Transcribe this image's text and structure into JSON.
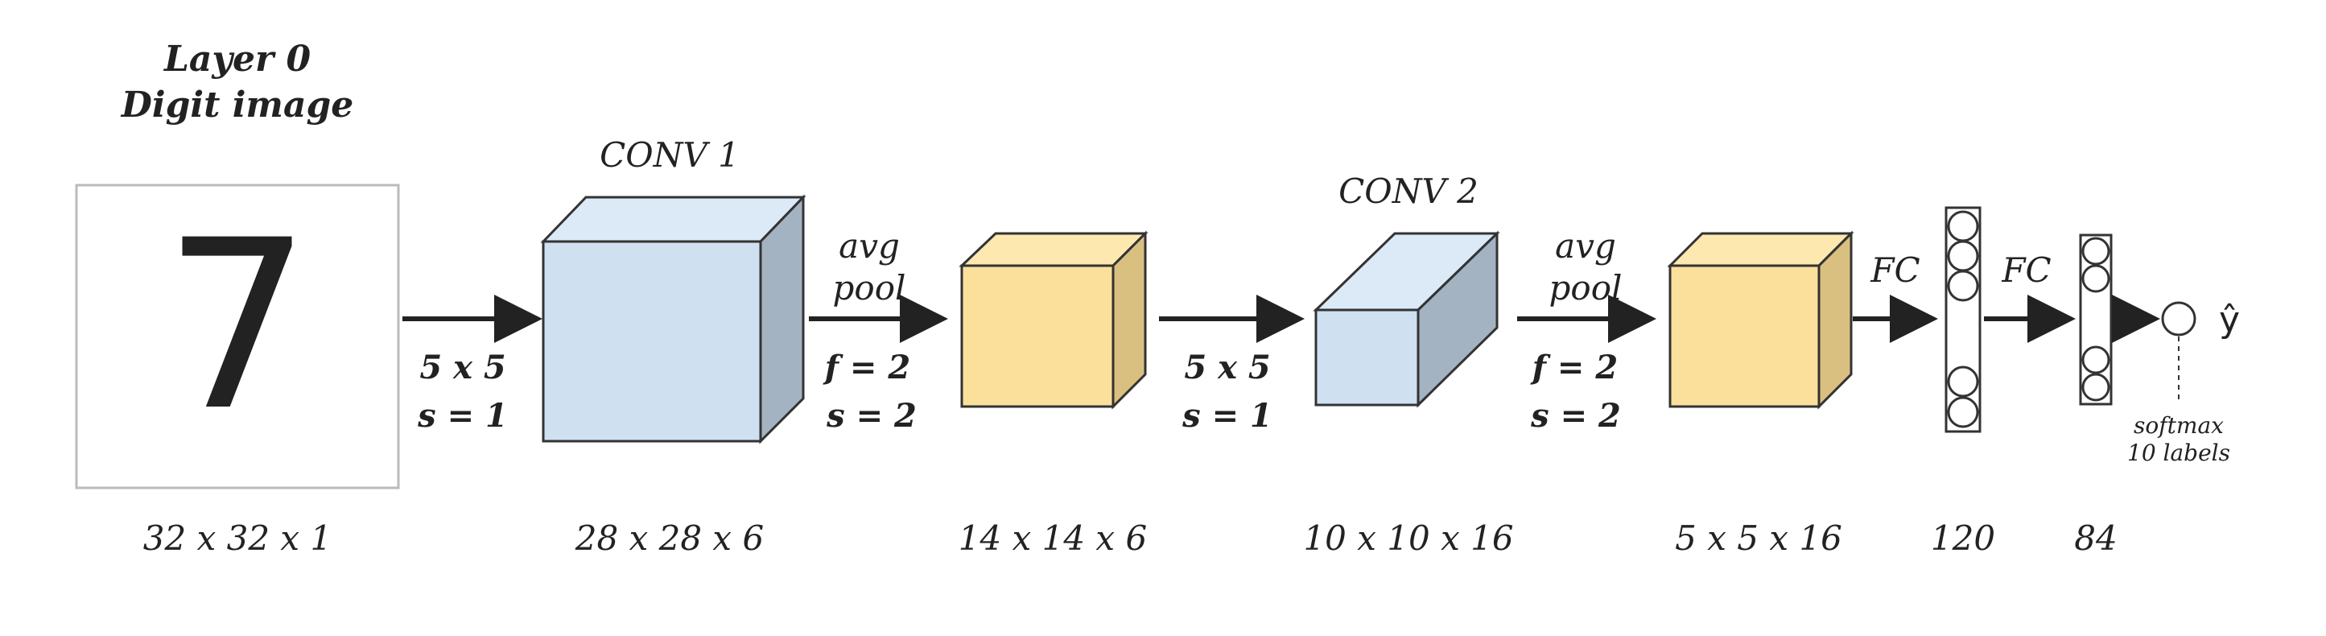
{
  "input": {
    "title_line1": "Layer 0",
    "title_line2": "Digit image",
    "digit": "7",
    "dims": "32 x 32 x 1"
  },
  "conv1": {
    "label": "CONV 1",
    "dims": "28 x 28 x 6"
  },
  "op1": {
    "kernel": "5 x 5",
    "stride": "s = 1"
  },
  "pool1": {
    "label_line1": "avg",
    "label_line2": "pool",
    "filter": "f = 2",
    "stride": "s = 2",
    "dims": "14 x 14 x 6"
  },
  "op2": {
    "kernel": "5 x 5",
    "stride": "s = 1"
  },
  "conv2": {
    "label": "CONV 2",
    "dims": "10 x 10 x 16"
  },
  "pool2": {
    "label_line1": "avg",
    "label_line2": "pool",
    "filter": "f = 2",
    "stride": "s = 2",
    "dims": "5 x 5 x 16"
  },
  "fc1": {
    "label": "FC",
    "dims": "120"
  },
  "fc2": {
    "label": "FC",
    "dims": "84"
  },
  "output": {
    "label": "ŷ",
    "note_line1": "softmax",
    "note_line2": "10 labels"
  },
  "colors": {
    "conv_front": "#cfe0f1",
    "conv_top": "#dce9f6",
    "conv_side": "#a4b3c2",
    "pool_front": "#fbe09c",
    "pool_top": "#fde8b0",
    "pool_side": "#d9c080",
    "stroke": "#333333"
  }
}
